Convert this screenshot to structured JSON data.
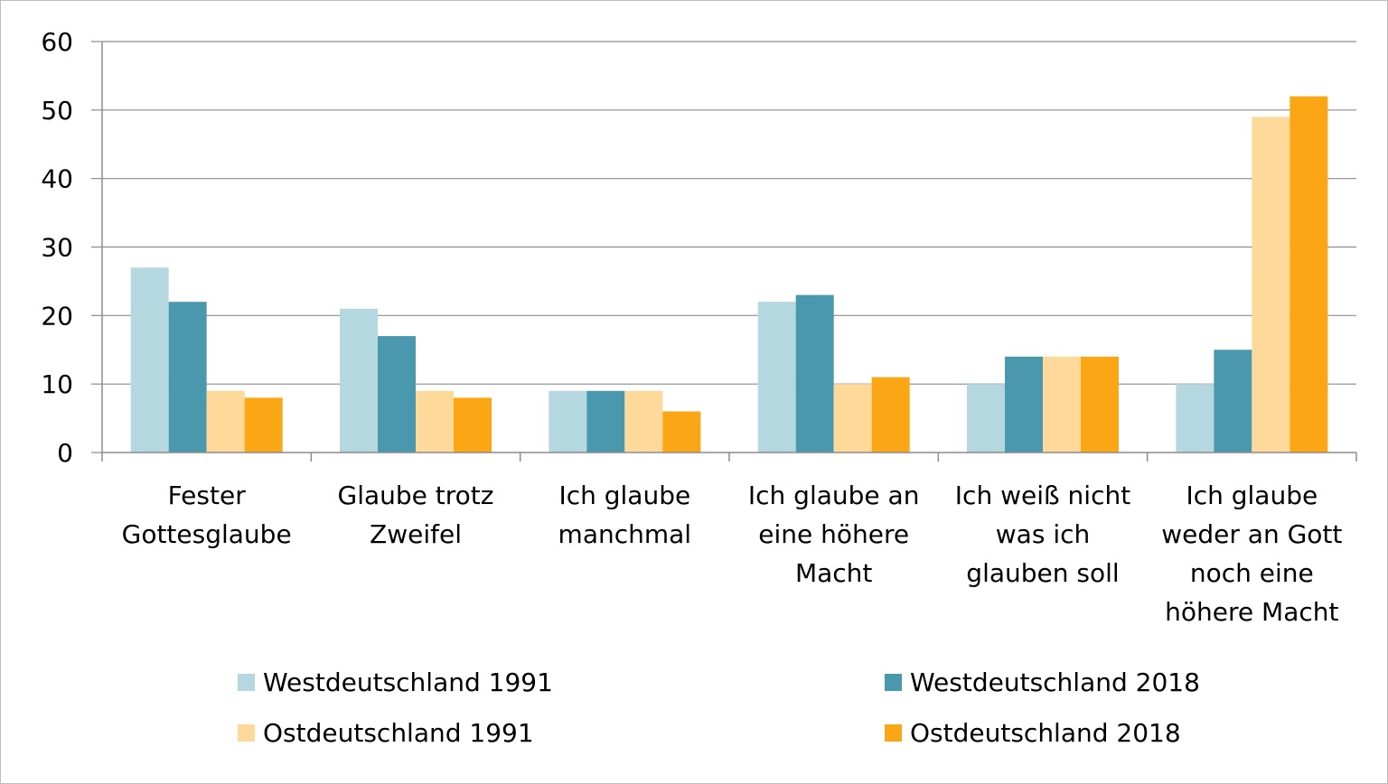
{
  "chart_data": {
    "type": "bar",
    "title": "",
    "xlabel": "",
    "ylabel": "",
    "ylim": [
      0,
      60
    ],
    "yticks": [
      0,
      10,
      20,
      30,
      40,
      50,
      60
    ],
    "grid": true,
    "legend_position": "bottom",
    "categories": [
      [
        "Fester",
        "Gottesglaube"
      ],
      [
        "Glaube trotz",
        "Zweifel"
      ],
      [
        "Ich glaube",
        "manchmal"
      ],
      [
        "Ich glaube an",
        "eine höhere",
        "Macht"
      ],
      [
        "Ich weiß nicht",
        "was ich",
        "glauben soll"
      ],
      [
        "Ich glaube",
        "weder an Gott",
        "noch eine",
        "höhere Macht"
      ]
    ],
    "series": [
      {
        "name": "Westdeutschland 1991",
        "color": "#b5d8e0",
        "values": [
          27,
          21,
          9,
          22,
          10,
          10
        ]
      },
      {
        "name": "Westdeutschland 2018",
        "color": "#4a98ad",
        "values": [
          22,
          17,
          9,
          23,
          14,
          15
        ]
      },
      {
        "name": "Ostdeutschland 1991",
        "color": "#fed99a",
        "values": [
          9,
          9,
          9,
          10,
          14,
          49
        ]
      },
      {
        "name": "Ostdeutschland 2018",
        "color": "#fba614",
        "values": [
          8,
          8,
          6,
          11,
          14,
          52
        ]
      }
    ]
  }
}
